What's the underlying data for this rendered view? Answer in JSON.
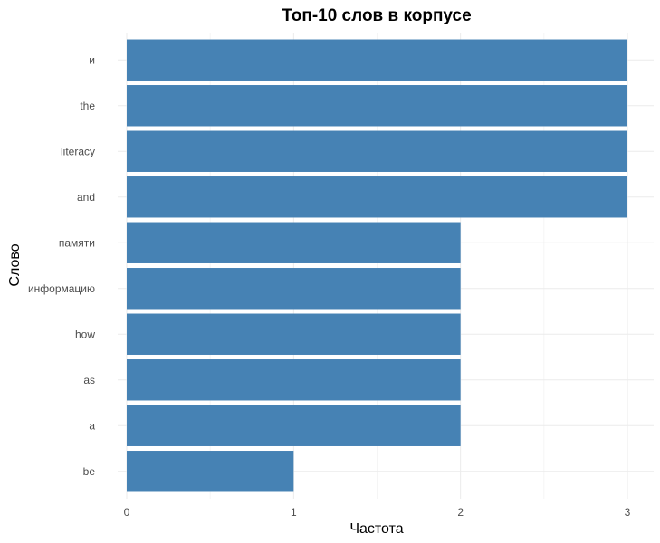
{
  "chart_data": {
    "type": "bar",
    "orientation": "horizontal",
    "title": "Топ-10 слов в корпусе",
    "xlabel": "Частота",
    "ylabel": "Слово",
    "categories": [
      "и",
      "the",
      "literacy",
      "and",
      "памяти",
      "информацию",
      "how",
      "as",
      "a",
      "be"
    ],
    "values": [
      3,
      3,
      3,
      3,
      2,
      2,
      2,
      2,
      2,
      1
    ],
    "xlim": [
      0,
      3
    ],
    "xticks": [
      "0",
      "1",
      "2",
      "3"
    ],
    "grid": true,
    "legend": "none",
    "bar_color": "#4682b4"
  }
}
